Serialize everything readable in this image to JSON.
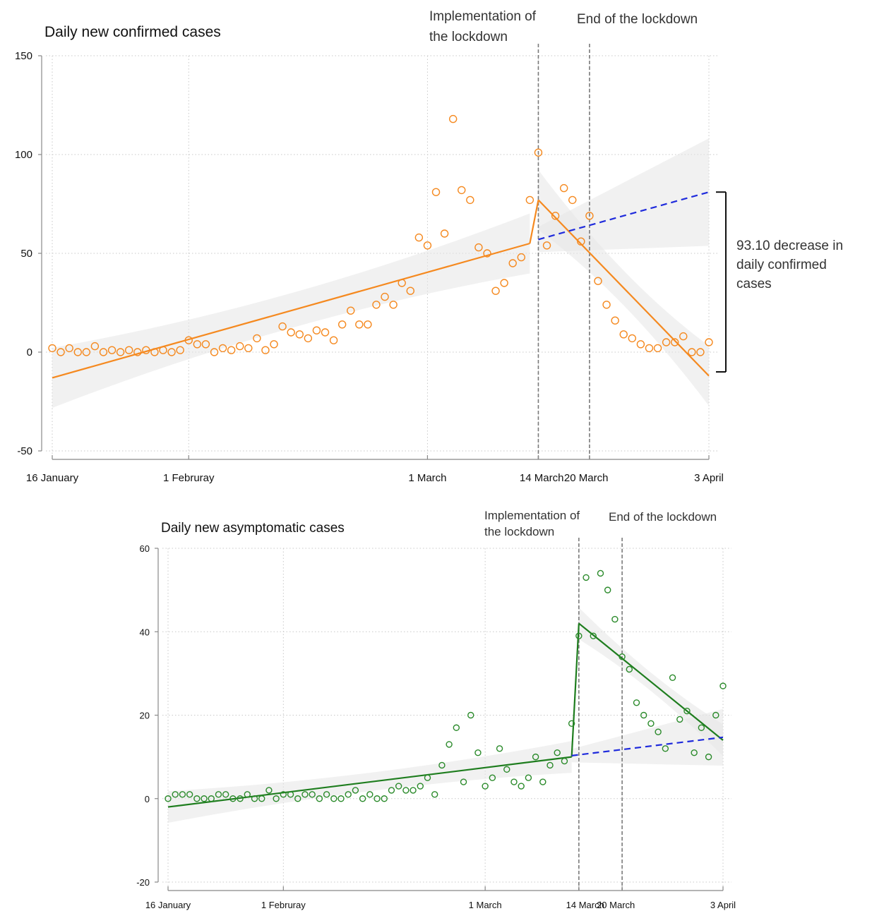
{
  "chart_data": [
    {
      "type": "scatter",
      "title": "Daily new confirmed cases",
      "xlabel": "",
      "ylabel": "",
      "ylim": [
        -50,
        150
      ],
      "yticks": [
        -50,
        0,
        50,
        100,
        150
      ],
      "x_start": "16 January",
      "x_end": "3 April",
      "xticks": [
        {
          "label": "16 January",
          "day": 0
        },
        {
          "label": "1 Februray",
          "day": 16
        },
        {
          "label": "1 March",
          "day": 44
        },
        {
          "label": "14 March",
          "day": 57
        },
        {
          "label": "20 March",
          "day": 63
        },
        {
          "label": "3 April",
          "day": 77
        }
      ],
      "grid": true,
      "colors": {
        "points": "#f5891f",
        "fit": "#f5891f",
        "counterfactual": "#1f2bdc",
        "band": "#e6e6e6"
      },
      "points": [
        2,
        0,
        2,
        0,
        0,
        3,
        0,
        1,
        0,
        1,
        0,
        1,
        0,
        1,
        0,
        1,
        6,
        4,
        4,
        0,
        2,
        1,
        3,
        2,
        7,
        1,
        4,
        13,
        10,
        9,
        7,
        11,
        10,
        6,
        14,
        21,
        14,
        14,
        24,
        28,
        24,
        35,
        31,
        58,
        54,
        81,
        60,
        118,
        82,
        77,
        53,
        50,
        31,
        35,
        45,
        48,
        77,
        101,
        54,
        69,
        83,
        77,
        56,
        69,
        36,
        24,
        16,
        9,
        7,
        4,
        2,
        2,
        5,
        5,
        8,
        0,
        0,
        5
      ],
      "fit_segments": [
        {
          "from": [
            0,
            -13
          ],
          "to": [
            56,
            55
          ]
        },
        {
          "from": [
            57,
            77
          ],
          "to": [
            77,
            -12
          ]
        }
      ],
      "counterfactual": {
        "from": [
          57,
          57
        ],
        "to": [
          77,
          81
        ],
        "style": "dashed"
      },
      "vertical_lines": [
        {
          "day": 57,
          "label": [
            "Implementation of",
            "the lockdown"
          ]
        },
        {
          "day": 63,
          "label": [
            "End of the lockdown"
          ]
        }
      ],
      "bracket": {
        "from": 81,
        "to": -10,
        "label": [
          "93.10 decrease in",
          "daily confirmed",
          "cases"
        ]
      }
    },
    {
      "type": "scatter",
      "title": "Daily new asymptomatic cases",
      "xlabel": "",
      "ylabel": "",
      "ylim": [
        -20,
        60
      ],
      "yticks": [
        -20,
        0,
        20,
        40,
        60
      ],
      "x_start": "16 January",
      "x_end": "3 April",
      "xticks": [
        {
          "label": "16 January",
          "day": 0
        },
        {
          "label": "1 Februray",
          "day": 16
        },
        {
          "label": "1 March",
          "day": 44
        },
        {
          "label": "14 March",
          "day": 57
        },
        {
          "label": "20 March",
          "day": 63
        },
        {
          "label": "3 April",
          "day": 77
        }
      ],
      "grid": true,
      "colors": {
        "points": "#2a8a2a",
        "fit": "#1e7d1e",
        "counterfactual": "#1f2bdc",
        "band": "#e6e6e6"
      },
      "points": [
        0,
        1,
        1,
        1,
        0,
        0,
        0,
        1,
        1,
        0,
        0,
        1,
        0,
        0,
        2,
        0,
        1,
        1,
        0,
        1,
        1,
        0,
        1,
        0,
        0,
        1,
        2,
        0,
        1,
        0,
        0,
        2,
        3,
        2,
        2,
        3,
        5,
        1,
        8,
        13,
        17,
        4,
        20,
        11,
        3,
        5,
        12,
        7,
        4,
        3,
        5,
        10,
        4,
        8,
        11,
        9,
        18,
        39,
        53,
        39,
        54,
        50,
        43,
        34,
        31,
        23,
        20,
        18,
        16,
        12,
        29,
        19,
        21,
        11,
        17,
        10,
        20,
        27
      ],
      "fit_segments": [
        {
          "from": [
            0,
            -2
          ],
          "to": [
            56,
            10
          ]
        },
        {
          "from": [
            57,
            42
          ],
          "to": [
            77,
            14
          ]
        }
      ],
      "counterfactual": {
        "from": [
          56,
          10.3
        ],
        "to": [
          77,
          14.7
        ],
        "style": "dashed"
      },
      "vertical_lines": [
        {
          "day": 57,
          "label": [
            "Implementation of",
            "the lockdown"
          ]
        },
        {
          "day": 63,
          "label": [
            "End of the lockdown"
          ]
        }
      ]
    }
  ]
}
